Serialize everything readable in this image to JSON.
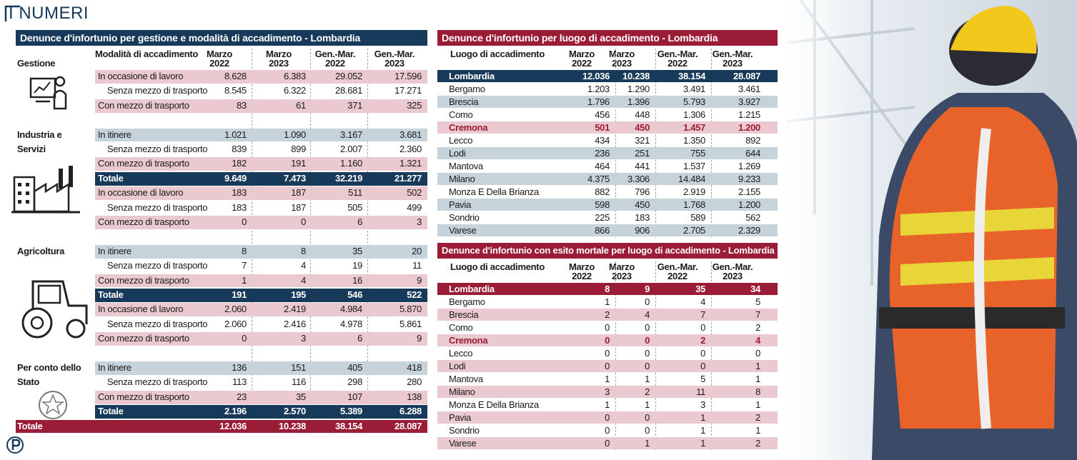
{
  "header": {
    "title": "I NUMERI"
  },
  "left": {
    "title": "Denunce d'infortunio per gestione e modalità di accadimento - Lombardia",
    "columns": {
      "group": "Gestione",
      "label": "Modalità di accadimento",
      "values": [
        [
          "Marzo",
          "2022"
        ],
        [
          "Marzo",
          "2023"
        ],
        [
          "Gen.-Mar.",
          "2022"
        ],
        [
          "Gen.-Mar.",
          "2023"
        ]
      ]
    },
    "rows": [
      {
        "label": "In occasione di lavoro",
        "values": [
          "8.628",
          "6.383",
          "29.052",
          "17.596"
        ],
        "bg": "#ebc9d1"
      },
      {
        "label": "Senza mezzo di trasporto",
        "values": [
          "8.545",
          "6.322",
          "28.681",
          "17.271"
        ]
      },
      {
        "label": "Con mezzo di trasporto",
        "values": [
          "83",
          "61",
          "371",
          "325"
        ],
        "bg": "#ebc9d1"
      },
      null,
      {
        "group": "Industria e Servizi",
        "label": "In itinere",
        "values": [
          "1.021",
          "1.090",
          "3.167",
          "3.681"
        ],
        "bg": "#c6d3da"
      },
      {
        "label": "Senza mezzo di trasporto",
        "values": [
          "839",
          "899",
          "2.007",
          "2.360"
        ]
      },
      {
        "label": "Con mezzo di trasporto",
        "values": [
          "182",
          "191",
          "1.160",
          "1.321"
        ],
        "bg": "#ebc9d1"
      },
      {
        "label": "Totale",
        "values": [
          "9.649",
          "7.473",
          "32.219",
          "21.277"
        ],
        "bg": "#17395a",
        "fg": "#ffffff"
      },
      {
        "label": "In occasione di lavoro",
        "values": [
          "183",
          "187",
          "511",
          "502"
        ],
        "bg": "#ebc9d1"
      },
      {
        "label": "Senza mezzo di trasporto",
        "values": [
          "183",
          "187",
          "505",
          "499"
        ]
      },
      {
        "label": "Con mezzo di trasporto",
        "values": [
          "0",
          "0",
          "6",
          "3"
        ],
        "bg": "#ebc9d1"
      },
      null,
      {
        "group": "Agricoltura",
        "label": "In itinere",
        "values": [
          "8",
          "8",
          "35",
          "20"
        ],
        "bg": "#c6d3da"
      },
      {
        "label": "Senza mezzo di trasporto",
        "values": [
          "7",
          "4",
          "19",
          "11"
        ]
      },
      {
        "label": "Con mezzo di trasporto",
        "values": [
          "1",
          "4",
          "16",
          "9"
        ],
        "bg": "#ebc9d1"
      },
      {
        "label": "Totale",
        "values": [
          "191",
          "195",
          "546",
          "522"
        ],
        "bg": "#17395a",
        "fg": "#ffffff"
      },
      {
        "label": "In occasione di lavoro",
        "values": [
          "2.060",
          "2.419",
          "4.984",
          "5.870"
        ],
        "bg": "#ebc9d1"
      },
      {
        "label": "Senza mezzo di trasporto",
        "values": [
          "2.060",
          "2.416",
          "4.978",
          "5.861"
        ]
      },
      {
        "label": "Con mezzo di trasporto",
        "values": [
          "0",
          "3",
          "6",
          "9"
        ],
        "bg": "#ebc9d1"
      },
      null,
      {
        "group": "Per conto dello Stato",
        "label": "In itinere",
        "values": [
          "136",
          "151",
          "405",
          "418"
        ],
        "bg": "#c6d3da"
      },
      {
        "label": "Senza mezzo di trasporto",
        "values": [
          "113",
          "116",
          "298",
          "280"
        ]
      },
      {
        "label": "Con mezzo di trasporto",
        "values": [
          "23",
          "35",
          "107",
          "138"
        ],
        "bg": "#ebc9d1"
      },
      {
        "label": "Totale",
        "values": [
          "2.196",
          "2.570",
          "5.389",
          "6.288"
        ],
        "bg": "#17395a",
        "fg": "#ffffff"
      },
      {
        "group": "Totale",
        "values": [
          "12.036",
          "10.238",
          "38.154",
          "28.087"
        ],
        "bg": "#9b1c36",
        "fg": "#ffffff"
      }
    ]
  },
  "right": [
    {
      "title": "Denunce d'infortunio per luogo di accadimento - Lombardia",
      "label": "Luogo di accadimento",
      "columns": [
        [
          "Marzo",
          "2022"
        ],
        [
          "Marzo",
          "2023"
        ],
        [
          "Gen.-Mar.",
          "2022"
        ],
        [
          "Gen.-Mar.",
          "2023"
        ]
      ],
      "rows": [
        {
          "label": "Lombardia",
          "values": [
            "12.036",
            "10.238",
            "38.154",
            "28.087"
          ],
          "bg": "#17395a",
          "fg": "#ffffff"
        },
        {
          "label": "Bergamo",
          "values": [
            "1.203",
            "1.290",
            "3.491",
            "3.461"
          ]
        },
        {
          "label": "Brescia",
          "values": [
            "1.796",
            "1.396",
            "5.793",
            "3.927"
          ],
          "bg": "#c6d3da"
        },
        {
          "label": "Como",
          "values": [
            "456",
            "448",
            "1.306",
            "1.215"
          ]
        },
        {
          "label": "Cremona",
          "values": [
            "501",
            "450",
            "1.457",
            "1.200"
          ],
          "bg": "#ebc9d1",
          "fg": "#9b1c36"
        },
        {
          "label": "Lecco",
          "values": [
            "434",
            "321",
            "1.350",
            "892"
          ]
        },
        {
          "label": "Lodi",
          "values": [
            "236",
            "251",
            "755",
            "644"
          ],
          "bg": "#c6d3da"
        },
        {
          "label": "Mantova",
          "values": [
            "464",
            "441",
            "1.537",
            "1.269"
          ]
        },
        {
          "label": "Milano",
          "values": [
            "4.375",
            "3.306",
            "14.484",
            "9.233"
          ],
          "bg": "#c6d3da"
        },
        {
          "label": "Monza E Della Brianza",
          "values": [
            "882",
            "796",
            "2.919",
            "2.155"
          ]
        },
        {
          "label": "Pavia",
          "values": [
            "598",
            "450",
            "1.768",
            "1.200"
          ],
          "bg": "#c6d3da"
        },
        {
          "label": "Sondrio",
          "values": [
            "225",
            "183",
            "589",
            "562"
          ]
        },
        {
          "label": "Varese",
          "values": [
            "866",
            "906",
            "2.705",
            "2.329"
          ],
          "bg": "#c6d3da"
        }
      ]
    },
    {
      "title": "Denunce d'infortunio con esito mortale per luogo di accadimento - Lombardia",
      "label": "Luogo di accadimento",
      "columns": [
        [
          "Marzo",
          "2022"
        ],
        [
          "Marzo",
          "2023"
        ],
        [
          "Gen.-Mar.",
          "2022"
        ],
        [
          "Gen.-Mar.",
          "2023"
        ]
      ],
      "rows": [
        {
          "label": "Lombardia",
          "values": [
            "8",
            "9",
            "35",
            "34"
          ],
          "bg": "#9b1c36",
          "fg": "#ffffff"
        },
        {
          "label": "Bergamo",
          "values": [
            "1",
            "0",
            "4",
            "5"
          ]
        },
        {
          "label": "Brescia",
          "values": [
            "2",
            "4",
            "7",
            "7"
          ],
          "bg": "#ebc9d1"
        },
        {
          "label": "Como",
          "values": [
            "0",
            "0",
            "0",
            "2"
          ]
        },
        {
          "label": "Cremona",
          "values": [
            "0",
            "0",
            "2",
            "4"
          ],
          "bg": "#ebc9d1",
          "fg": "#9b1c36"
        },
        {
          "label": "Lecco",
          "values": [
            "0",
            "0",
            "0",
            "0"
          ]
        },
        {
          "label": "Lodi",
          "values": [
            "0",
            "0",
            "0",
            "1"
          ],
          "bg": "#ebc9d1"
        },
        {
          "label": "Mantova",
          "values": [
            "1",
            "1",
            "5",
            "1"
          ]
        },
        {
          "label": "Milano",
          "values": [
            "3",
            "2",
            "11",
            "8"
          ],
          "bg": "#ebc9d1"
        },
        {
          "label": "Monza E Della Brianza",
          "values": [
            "1",
            "1",
            "3",
            "1"
          ]
        },
        {
          "label": "Pavia",
          "values": [
            "0",
            "0",
            "1",
            "2"
          ],
          "bg": "#ebc9d1"
        },
        {
          "label": "Sondrio",
          "values": [
            "0",
            "0",
            "1",
            "1"
          ]
        },
        {
          "label": "Varese",
          "values": [
            "0",
            "1",
            "1",
            "2"
          ],
          "bg": "#ebc9d1"
        }
      ]
    }
  ]
}
